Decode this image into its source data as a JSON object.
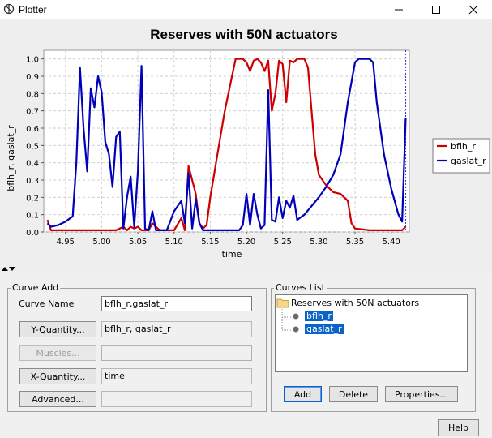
{
  "window": {
    "title": "Plotter"
  },
  "chart_data": {
    "type": "line",
    "title": "Reserves with 50N  actuators",
    "xlabel": "time",
    "ylabel": "bflh_r, gaslat_r",
    "xlim": [
      4.92,
      5.425
    ],
    "ylim": [
      0.0,
      1.05
    ],
    "x_ticks": [
      "4.95",
      "5.00",
      "5.05",
      "5.10",
      "5.15",
      "5.20",
      "5.25",
      "5.30",
      "5.35",
      "5.40"
    ],
    "y_ticks": [
      "0.0",
      "0.1",
      "0.2",
      "0.3",
      "0.4",
      "0.5",
      "0.6",
      "0.7",
      "0.8",
      "0.9",
      "1.0"
    ],
    "grid": true,
    "legend_position": "right",
    "marker_line_x": 5.42,
    "series": [
      {
        "name": "bflh_r",
        "color": "#cc0000",
        "points": [
          [
            4.925,
            0.07
          ],
          [
            4.93,
            0.01
          ],
          [
            4.95,
            0.01
          ],
          [
            5.0,
            0.01
          ],
          [
            5.02,
            0.01
          ],
          [
            5.03,
            0.03
          ],
          [
            5.035,
            0.01
          ],
          [
            5.04,
            0.03
          ],
          [
            5.045,
            0.02
          ],
          [
            5.05,
            0.03
          ],
          [
            5.055,
            0.01
          ],
          [
            5.065,
            0.01
          ],
          [
            5.07,
            0.05
          ],
          [
            5.08,
            0.01
          ],
          [
            5.1,
            0.01
          ],
          [
            5.11,
            0.08
          ],
          [
            5.115,
            0.01
          ],
          [
            5.12,
            0.38
          ],
          [
            5.125,
            0.3
          ],
          [
            5.13,
            0.22
          ],
          [
            5.135,
            0.05
          ],
          [
            5.14,
            0.02
          ],
          [
            5.145,
            0.04
          ],
          [
            5.15,
            0.2
          ],
          [
            5.16,
            0.45
          ],
          [
            5.17,
            0.7
          ],
          [
            5.18,
            0.9
          ],
          [
            5.185,
            1.0
          ],
          [
            5.195,
            1.0
          ],
          [
            5.2,
            0.98
          ],
          [
            5.205,
            0.93
          ],
          [
            5.21,
            0.99
          ],
          [
            5.215,
            1.0
          ],
          [
            5.22,
            0.98
          ],
          [
            5.225,
            0.93
          ],
          [
            5.23,
            0.99
          ],
          [
            5.235,
            0.7
          ],
          [
            5.24,
            0.8
          ],
          [
            5.245,
            0.99
          ],
          [
            5.25,
            0.97
          ],
          [
            5.255,
            0.75
          ],
          [
            5.26,
            0.99
          ],
          [
            5.265,
            0.98
          ],
          [
            5.27,
            1.0
          ],
          [
            5.28,
            1.0
          ],
          [
            5.285,
            0.95
          ],
          [
            5.29,
            0.7
          ],
          [
            5.295,
            0.45
          ],
          [
            5.3,
            0.33
          ],
          [
            5.31,
            0.27
          ],
          [
            5.32,
            0.23
          ],
          [
            5.33,
            0.22
          ],
          [
            5.34,
            0.18
          ],
          [
            5.345,
            0.05
          ],
          [
            5.35,
            0.02
          ],
          [
            5.37,
            0.01
          ],
          [
            5.4,
            0.01
          ],
          [
            5.415,
            0.01
          ],
          [
            5.42,
            0.03
          ]
        ]
      },
      {
        "name": "gaslat_r",
        "color": "#0000bb",
        "points": [
          [
            4.925,
            0.05
          ],
          [
            4.93,
            0.03
          ],
          [
            4.94,
            0.04
          ],
          [
            4.95,
            0.06
          ],
          [
            4.96,
            0.09
          ],
          [
            4.965,
            0.4
          ],
          [
            4.97,
            0.95
          ],
          [
            4.975,
            0.6
          ],
          [
            4.98,
            0.35
          ],
          [
            4.985,
            0.83
          ],
          [
            4.99,
            0.72
          ],
          [
            4.995,
            0.9
          ],
          [
            5.0,
            0.81
          ],
          [
            5.005,
            0.52
          ],
          [
            5.01,
            0.45
          ],
          [
            5.015,
            0.26
          ],
          [
            5.02,
            0.55
          ],
          [
            5.025,
            0.58
          ],
          [
            5.03,
            0.02
          ],
          [
            5.035,
            0.2
          ],
          [
            5.04,
            0.32
          ],
          [
            5.045,
            0.03
          ],
          [
            5.05,
            0.35
          ],
          [
            5.055,
            0.96
          ],
          [
            5.06,
            0.02
          ],
          [
            5.065,
            0.01
          ],
          [
            5.07,
            0.12
          ],
          [
            5.075,
            0.01
          ],
          [
            5.085,
            0.01
          ],
          [
            5.09,
            0.01
          ],
          [
            5.1,
            0.12
          ],
          [
            5.11,
            0.18
          ],
          [
            5.115,
            0.05
          ],
          [
            5.12,
            0.34
          ],
          [
            5.125,
            0.02
          ],
          [
            5.13,
            0.19
          ],
          [
            5.135,
            0.05
          ],
          [
            5.14,
            0.01
          ],
          [
            5.16,
            0.01
          ],
          [
            5.19,
            0.01
          ],
          [
            5.195,
            0.04
          ],
          [
            5.2,
            0.22
          ],
          [
            5.205,
            0.04
          ],
          [
            5.21,
            0.22
          ],
          [
            5.215,
            0.1
          ],
          [
            5.22,
            0.02
          ],
          [
            5.225,
            0.04
          ],
          [
            5.23,
            0.82
          ],
          [
            5.235,
            0.07
          ],
          [
            5.24,
            0.06
          ],
          [
            5.245,
            0.2
          ],
          [
            5.25,
            0.08
          ],
          [
            5.255,
            0.18
          ],
          [
            5.26,
            0.14
          ],
          [
            5.265,
            0.21
          ],
          [
            5.27,
            0.07
          ],
          [
            5.28,
            0.1
          ],
          [
            5.29,
            0.15
          ],
          [
            5.3,
            0.2
          ],
          [
            5.31,
            0.26
          ],
          [
            5.32,
            0.33
          ],
          [
            5.33,
            0.45
          ],
          [
            5.34,
            0.75
          ],
          [
            5.35,
            0.98
          ],
          [
            5.355,
            1.0
          ],
          [
            5.37,
            1.0
          ],
          [
            5.375,
            0.98
          ],
          [
            5.38,
            0.75
          ],
          [
            5.39,
            0.45
          ],
          [
            5.4,
            0.25
          ],
          [
            5.41,
            0.1
          ],
          [
            5.415,
            0.06
          ],
          [
            5.42,
            0.66
          ]
        ]
      }
    ]
  },
  "curve_add": {
    "group_label": "Curve Add",
    "curve_name_label": "Curve Name",
    "curve_name_value": "bflh_r,gaslat_r",
    "y_quantity_button": "Y-Quantity...",
    "y_quantity_value": "bflh_r, gaslat_r",
    "muscles_button": "Muscles...",
    "muscles_value": "",
    "x_quantity_button": "X-Quantity...",
    "x_quantity_value": "time",
    "advanced_button": "Advanced...",
    "advanced_value": ""
  },
  "curves_list": {
    "group_label": "Curves List",
    "root": "Reserves with 50N  actuators",
    "items": [
      "bflh_r",
      "gaslat_r"
    ],
    "add_button": "Add",
    "delete_button": "Delete",
    "properties_button": "Properties..."
  },
  "help_button": "Help"
}
